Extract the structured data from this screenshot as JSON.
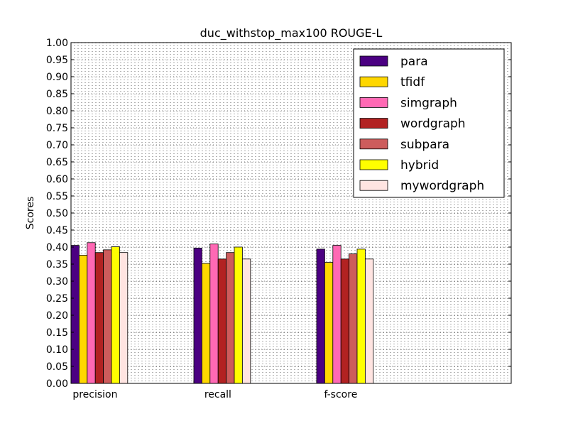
{
  "chart_data": {
    "type": "bar",
    "title": "duc_withstop_max100 ROUGE-L",
    "xlabel": "",
    "ylabel": "Scores",
    "ylim": [
      0.0,
      1.0
    ],
    "yticks": [
      "0.00",
      "0.05",
      "0.10",
      "0.15",
      "0.20",
      "0.25",
      "0.30",
      "0.35",
      "0.40",
      "0.45",
      "0.50",
      "0.55",
      "0.60",
      "0.65",
      "0.70",
      "0.75",
      "0.80",
      "0.85",
      "0.90",
      "0.95",
      "1.00"
    ],
    "grid": true,
    "legend_position": "top-right",
    "categories": [
      "precision",
      "recall",
      "f-score"
    ],
    "series": [
      {
        "name": "para",
        "color": "#4b0082",
        "values": [
          0.405,
          0.397,
          0.394
        ]
      },
      {
        "name": "tfidf",
        "color": "#ffd700",
        "values": [
          0.376,
          0.352,
          0.355
        ]
      },
      {
        "name": "simgraph",
        "color": "#ff69b4",
        "values": [
          0.413,
          0.409,
          0.405
        ]
      },
      {
        "name": "wordgraph",
        "color": "#b22222",
        "values": [
          0.384,
          0.365,
          0.365
        ]
      },
      {
        "name": "subpara",
        "color": "#cd5c5c",
        "values": [
          0.392,
          0.384,
          0.38
        ]
      },
      {
        "name": "hybrid",
        "color": "#ffff00",
        "values": [
          0.401,
          0.4,
          0.394
        ]
      },
      {
        "name": "mywordgraph",
        "color": "#ffe4e1",
        "values": [
          0.384,
          0.365,
          0.365
        ]
      }
    ]
  }
}
